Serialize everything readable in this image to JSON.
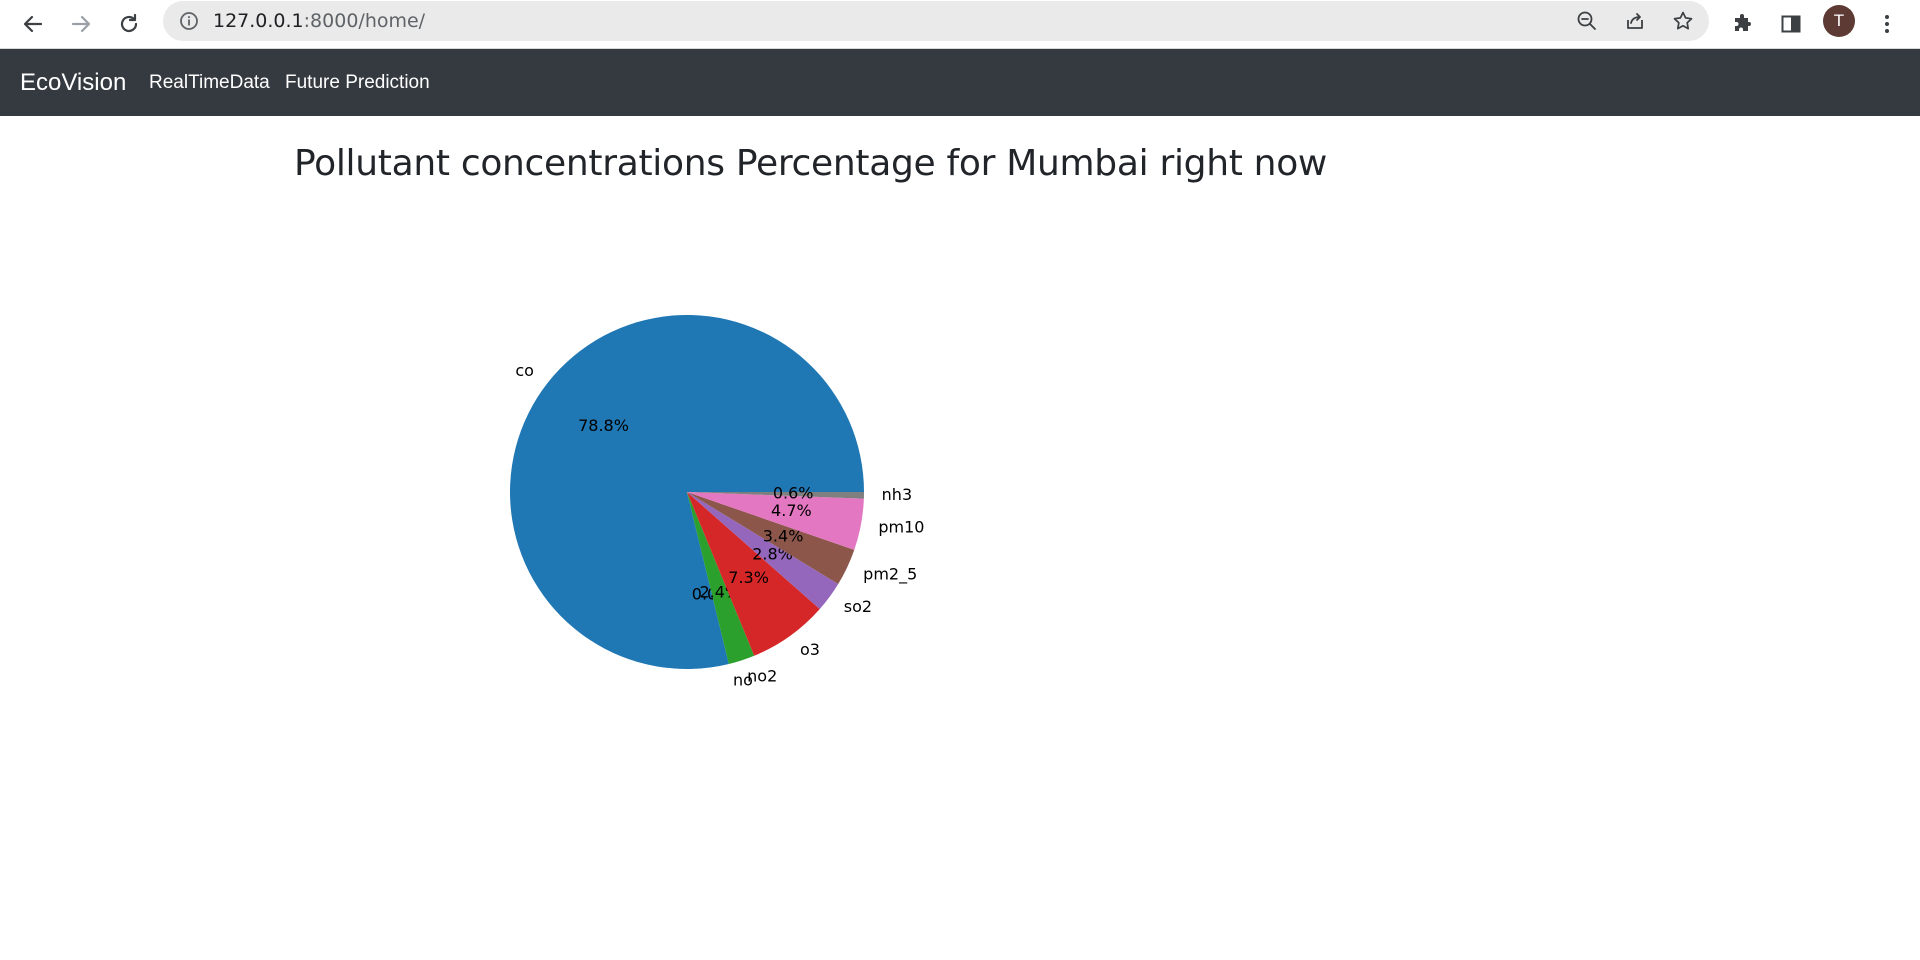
{
  "browser": {
    "url_host": "127.0.0.1",
    "url_path": ":8000/home/",
    "profile_initial": "T"
  },
  "navbar": {
    "brand": "EcoVision",
    "links": [
      "RealTimeData",
      "Future Prediction"
    ]
  },
  "page": {
    "title": "Pollutant concentrations Percentage for Mumbai right now"
  },
  "chart_data": {
    "type": "pie",
    "start_angle_deg": 0,
    "direction": "counterclockwise",
    "categories": [
      "co",
      "no",
      "no2",
      "o3",
      "so2",
      "pm2_5",
      "pm10",
      "nh3"
    ],
    "values": [
      78.8,
      0.0,
      2.4,
      7.3,
      2.8,
      3.4,
      4.7,
      0.6
    ],
    "labels": [
      "78.8%",
      "0.0%",
      "2.4%",
      "7.3%",
      "2.8%",
      "3.4%",
      "4.7%",
      "0.6%"
    ],
    "colors": [
      "#1f77b4",
      "#ff7f0e",
      "#2ca02c",
      "#d62728",
      "#9467bd",
      "#8c564b",
      "#e377c2",
      "#7f7f7f"
    ]
  }
}
